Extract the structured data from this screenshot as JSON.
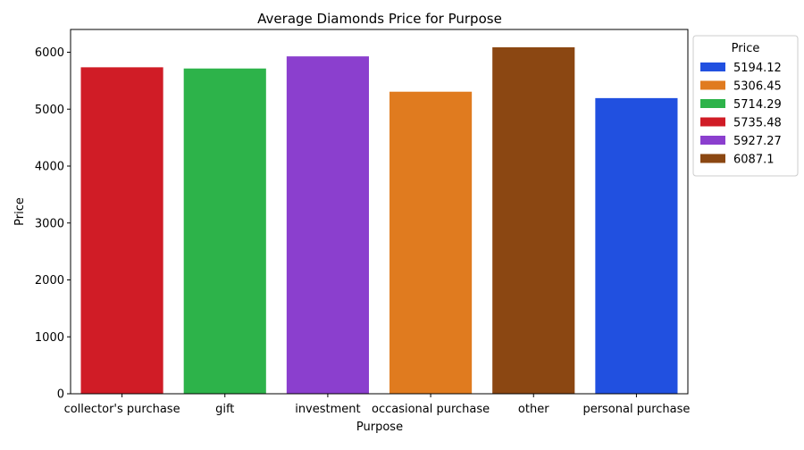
{
  "chart_data": {
    "type": "bar",
    "title": "Average Diamonds Price for Purpose",
    "xlabel": "Purpose",
    "ylabel": "Price",
    "categories": [
      "collector's purchase",
      "gift",
      "investment",
      "occasional purchase",
      "other",
      "personal purchase"
    ],
    "values": [
      5735.48,
      5714.29,
      5927.27,
      5306.45,
      6087.1,
      5194.12
    ],
    "colors": [
      "#d01c26",
      "#2db34a",
      "#8b3fce",
      "#e07b1f",
      "#8b4712",
      "#2150e0"
    ],
    "ylim": [
      0,
      6400
    ],
    "yticks": [
      0,
      1000,
      2000,
      3000,
      4000,
      5000,
      6000
    ],
    "grid": false,
    "legend": {
      "title": "Price",
      "position": "outside-right",
      "entries": [
        {
          "label": "5194.12",
          "color": "#2150e0"
        },
        {
          "label": "5306.45",
          "color": "#e07b1f"
        },
        {
          "label": "5714.29",
          "color": "#2db34a"
        },
        {
          "label": "5735.48",
          "color": "#d01c26"
        },
        {
          "label": "5927.27",
          "color": "#8b3fce"
        },
        {
          "label": "6087.1",
          "color": "#8b4712"
        }
      ]
    }
  }
}
